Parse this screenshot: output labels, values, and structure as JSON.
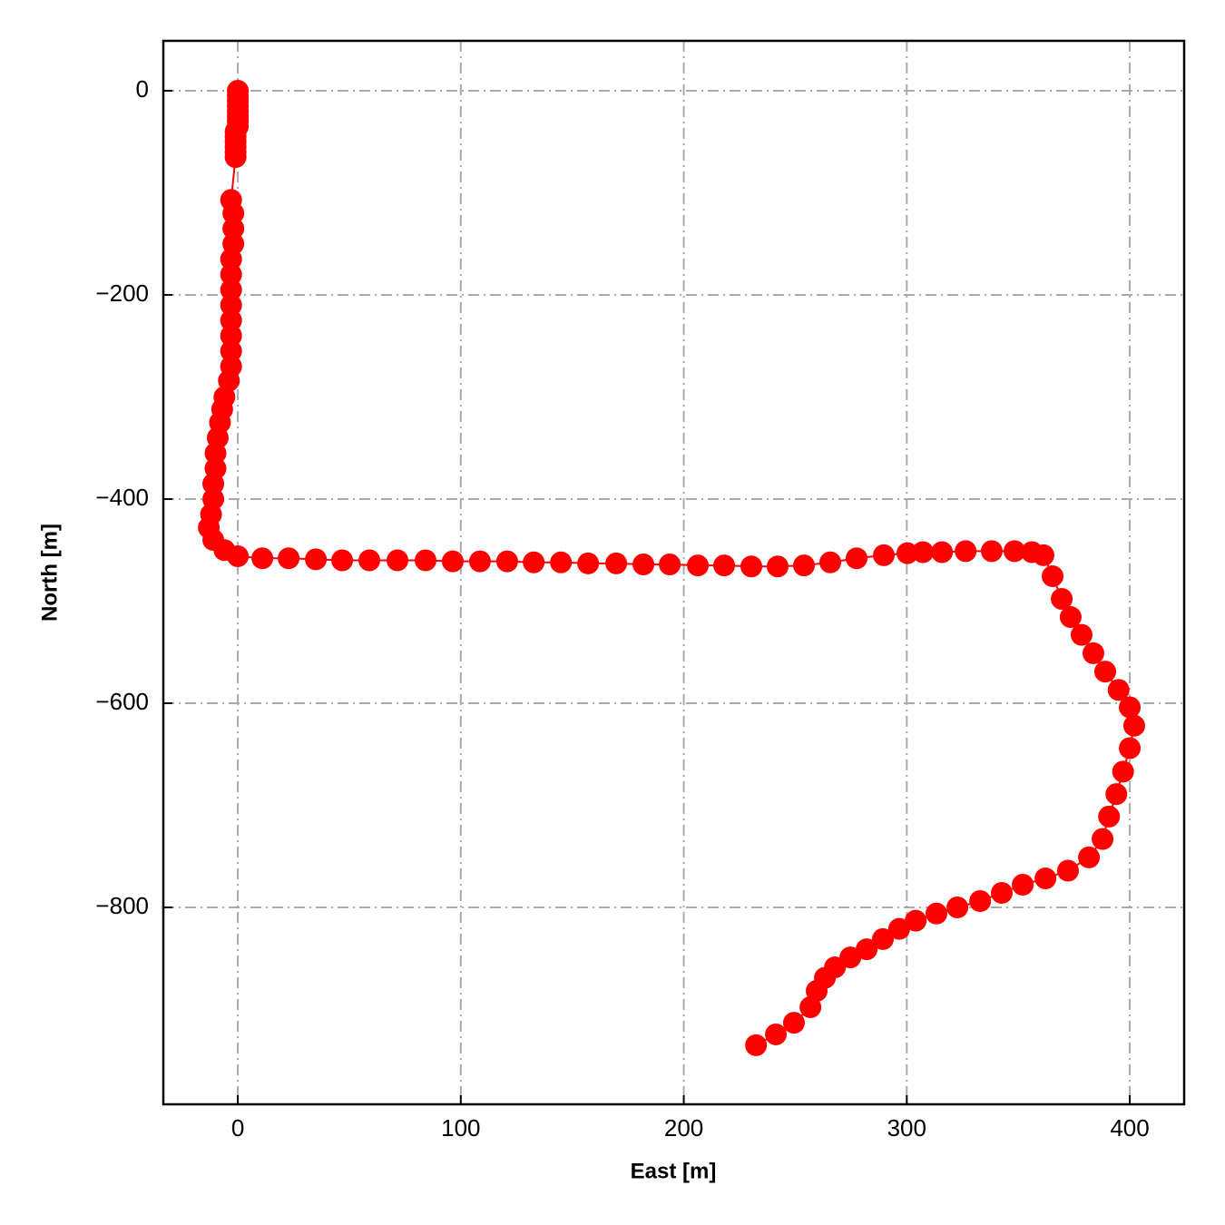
{
  "chart_data": {
    "type": "line",
    "xlabel": "East [m]",
    "ylabel": "North [m]",
    "x": [
      0,
      0,
      0,
      0,
      0,
      0,
      0,
      0,
      -1,
      -1,
      -1,
      -1,
      -1,
      -1,
      -3,
      -2,
      -2,
      -2,
      -3,
      -3,
      -3,
      -3,
      -3,
      -3,
      -3,
      -3,
      -4,
      -6,
      -7,
      -8,
      -9,
      -10,
      -10,
      -11,
      -11,
      -12,
      -13,
      -11,
      -6,
      0,
      11,
      22.8,
      35,
      46.8,
      59,
      71.6,
      84.2,
      96.4,
      108.6,
      120.8,
      132.7,
      144.9,
      157.1,
      169.7,
      181.9,
      193.7,
      206.3,
      218.1,
      230.3,
      242.1,
      253.9,
      265.7,
      277.5,
      289.7,
      300.3,
      307.2,
      315.8,
      326.4,
      338.1,
      348.3,
      356.1,
      361.3,
      365.4,
      369.5,
      373.5,
      378.4,
      383.7,
      389,
      395,
      400,
      402,
      400,
      397,
      394,
      390.7,
      387.8,
      381.7,
      372.3,
      362.2,
      352,
      342.6,
      332.9,
      322.7,
      313.3,
      304,
      296.6,
      289.3,
      282,
      274.7,
      267.8,
      263.3,
      259.6,
      256.8,
      249.4,
      241.3,
      232.4
    ],
    "values": [
      0,
      -5,
      -10,
      -15,
      -20,
      -25,
      -30,
      -35,
      -40,
      -45,
      -50,
      -55,
      -60,
      -65,
      -107,
      -120,
      -135,
      -150,
      -165,
      -180,
      -195,
      -210,
      -225,
      -240,
      -255,
      -270,
      -284,
      -300,
      -312,
      -325,
      -340,
      -355,
      -370,
      -385,
      -400,
      -415,
      -428,
      -440,
      -450,
      -456,
      -458,
      -458,
      -459,
      -460,
      -460,
      -460,
      -460,
      -461,
      -461,
      -461,
      -462,
      -462,
      -463,
      -463,
      -464,
      -464,
      -465,
      -465,
      -466,
      -466,
      -465,
      -462,
      -458,
      -455,
      -453,
      -452,
      -452,
      -451,
      -451,
      -451,
      -452,
      -455,
      -475.6,
      -497.8,
      -515.6,
      -533,
      -551,
      -569,
      -587,
      -604,
      -622,
      -644,
      -667,
      -689,
      -711,
      -733,
      -751,
      -764,
      -771.6,
      -777.8,
      -785.8,
      -793.8,
      -800,
      -806,
      -813,
      -821,
      -831,
      -841,
      -849,
      -858.7,
      -869,
      -881.8,
      -897.8,
      -913,
      -924.4,
      -935
    ],
    "color": "#ff0000",
    "xlim": [
      -33.4,
      424.4
    ],
    "ylim": [
      -992.9,
      48.9
    ],
    "xticks": [
      0,
      100,
      200,
      300,
      400
    ],
    "yticks": [
      0,
      {
        "value": -200,
        "label": "−200"
      },
      {
        "value": -400,
        "label": "−400"
      },
      {
        "value": -600,
        "label": "−600"
      },
      {
        "value": -800,
        "label": "−800"
      }
    ],
    "grid": true
  }
}
